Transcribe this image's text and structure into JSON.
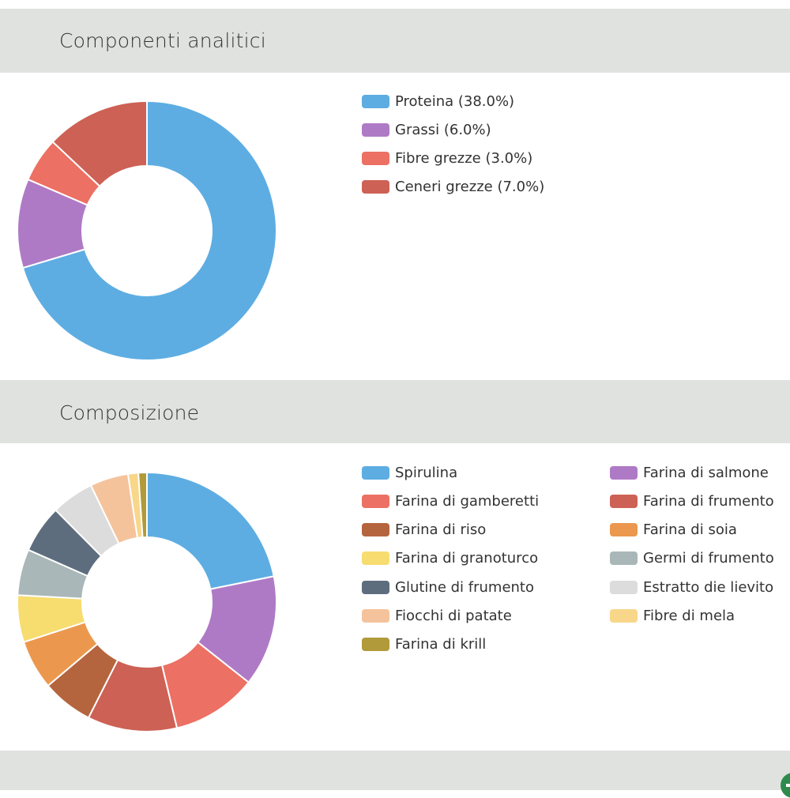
{
  "sections": {
    "analytic_title": "Componenti analitici",
    "composition_title": "Composizione"
  },
  "chart_data": [
    {
      "type": "pie",
      "variant": "donut",
      "title": "Componenti analitici",
      "categories": [
        "Proteina (38.0%)",
        "Grassi (6.0%)",
        "Fibre grezze (3.0%)",
        "Ceneri grezze (7.0%)"
      ],
      "values": [
        38.0,
        6.0,
        3.0,
        7.0
      ],
      "colors": [
        "#5dade2",
        "#af7ac5",
        "#ec7063",
        "#cd6155"
      ],
      "legend": "right"
    },
    {
      "type": "pie",
      "variant": "donut",
      "title": "Composizione",
      "categories": [
        "Spirulina",
        "Farina di salmone",
        "Farina di gamberetti",
        "Farina di frumento",
        "Farina di riso",
        "Farina di soia",
        "Farina di granoturco",
        "Germi di frumento",
        "Glutine di frumento",
        "Estratto die lievito",
        "Fiocchi di patate",
        "Fibre di mela",
        "Farina di krill"
      ],
      "values": [
        20.5,
        13.0,
        10.0,
        10.5,
        6.0,
        5.8,
        5.5,
        5.4,
        5.6,
        5.0,
        4.5,
        1.2,
        1.0
      ],
      "colors": [
        "#5dade2",
        "#af7ac5",
        "#ec7063",
        "#cd6155",
        "#b5653e",
        "#eb984e",
        "#f7dc6f",
        "#aab7b8",
        "#5d6d7e",
        "#dcdcdc",
        "#f5c39b",
        "#f8d68a",
        "#b09a3a"
      ],
      "legend": "right"
    }
  ]
}
